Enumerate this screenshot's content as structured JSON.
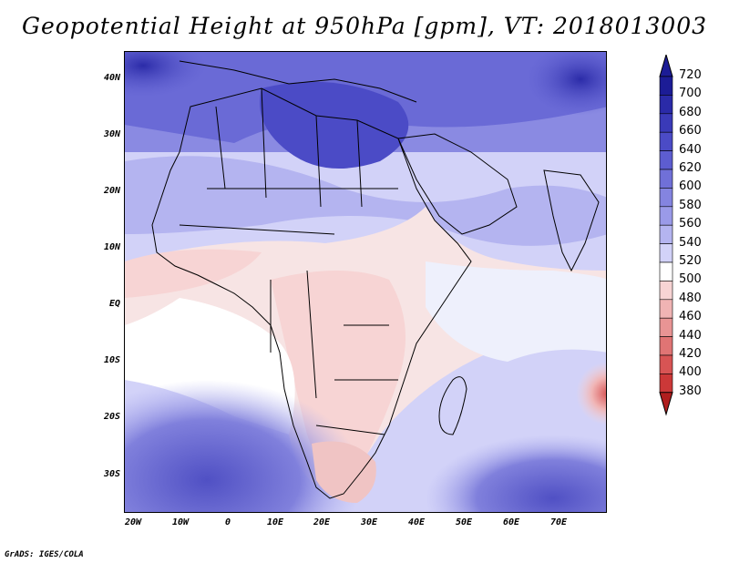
{
  "title": "Geopotential Height at 950hPa [gpm], VT: 2018013003",
  "credit": "GrADS: IGES/COLA",
  "lat_labels": [
    "40N",
    "30N",
    "20N",
    "10N",
    "EQ",
    "10S",
    "20S",
    "30S"
  ],
  "lon_labels": [
    "20W",
    "10W",
    "0",
    "10E",
    "20E",
    "30E",
    "40E",
    "50E",
    "60E",
    "70E"
  ],
  "colorbar": {
    "levels": [
      720,
      700,
      680,
      660,
      640,
      620,
      600,
      580,
      560,
      540,
      520,
      500,
      480,
      460,
      440,
      420,
      400,
      380
    ],
    "colors": [
      "#1c1c96",
      "#2a2aa8",
      "#3a3ab8",
      "#4b4bc6",
      "#5d5dd0",
      "#7070d8",
      "#8484e0",
      "#9a9ae8",
      "#b4b4f0",
      "#d2d2f8",
      "#ffffff",
      "#f7d4d4",
      "#f0b4b4",
      "#e89494",
      "#e07474",
      "#d85454",
      "#cc3838",
      "#b01e1e"
    ]
  },
  "field": {
    "name": "Geopotential Height",
    "level": "950hPa",
    "units": "gpm",
    "valid_time": "2018013003"
  }
}
